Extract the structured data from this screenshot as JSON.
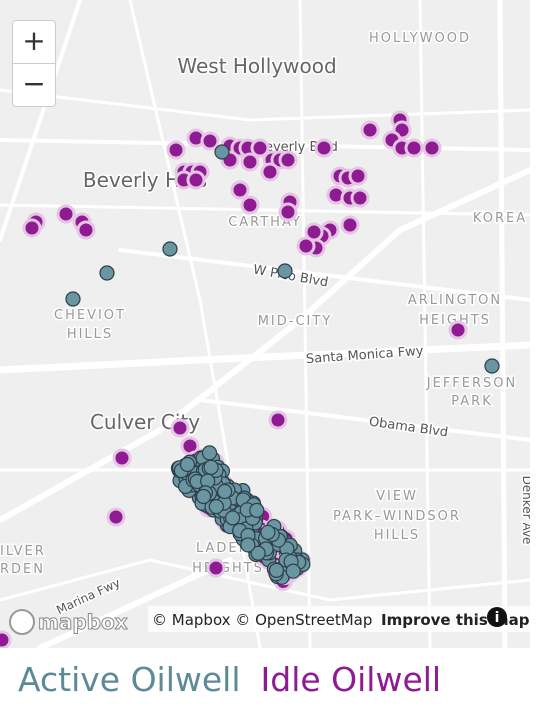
{
  "map": {
    "controls": {
      "zoom_in": "+",
      "zoom_out": "−"
    },
    "labels": [
      "HOLLYWOOD",
      "West Hollywood",
      "Beverly Blvd",
      "Beverly Hills",
      "CARTHAY",
      "KOREA",
      "W Pico Blvd",
      "CHEVIOT",
      "HILLS",
      "MID-CITY",
      "ARLINGTON",
      "HEIGHTS",
      "Santa Monica Fwy",
      "JEFFERSON",
      "PARK",
      "Culver City",
      "Obama Blvd",
      "VIEW",
      "PARK–WINDSOR",
      "HILLS",
      "LADERA",
      "HEIGHTS",
      "Denker Ave",
      "Marina Fwy",
      "ILVER",
      "RDEN"
    ],
    "attribution": {
      "logo": "mapbox",
      "text": "© Mapbox © OpenStreetMap",
      "link": "Improve this map",
      "info": "i"
    }
  },
  "legend": {
    "active": "Active Oilwell",
    "idle": "Idle Oilwell"
  }
}
